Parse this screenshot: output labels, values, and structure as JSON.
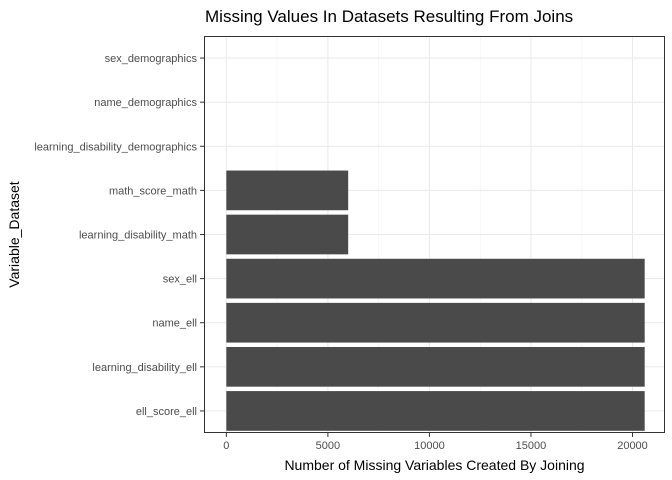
{
  "chart_data": {
    "type": "bar",
    "orientation": "horizontal",
    "title": "Missing Values In Datasets Resulting From Joins",
    "xlabel": "Number of Missing Variables Created By Joining",
    "ylabel": "Variable_Dataset",
    "categories": [
      "sex_demographics",
      "name_demographics",
      "learning_disability_demographics",
      "math_score_math",
      "learning_disability_math",
      "sex_ell",
      "name_ell",
      "learning_disability_ell",
      "ell_score_ell"
    ],
    "values": [
      0,
      0,
      0,
      6000,
      6000,
      20600,
      20600,
      20600,
      20600
    ],
    "xlim": [
      -1100,
      21600
    ],
    "xticks": [
      0,
      5000,
      10000,
      15000,
      20000
    ],
    "xtick_labels": [
      "0",
      "5000",
      "10000",
      "15000",
      "20000"
    ],
    "grid": true,
    "bar_color": "#4a4a4a"
  }
}
